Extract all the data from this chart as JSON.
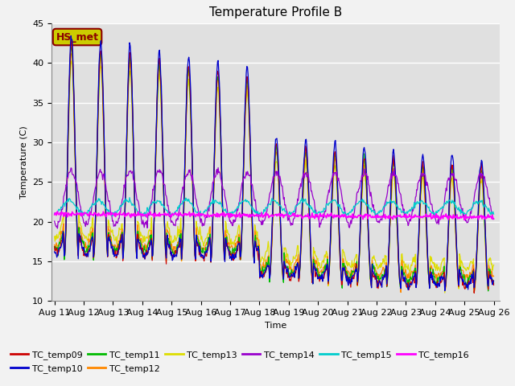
{
  "title": "Temperature Profile B",
  "xlabel": "Time",
  "ylabel": "Temperature (C)",
  "ylim": [
    10,
    45
  ],
  "series_colors": {
    "TC_temp09": "#cc0000",
    "TC_temp10": "#0000cc",
    "TC_temp11": "#00bb00",
    "TC_temp12": "#ff8800",
    "TC_temp13": "#dddd00",
    "TC_temp14": "#9900cc",
    "TC_temp15": "#00cccc",
    "TC_temp16": "#ff00ff"
  },
  "annotation_text": "HS_met",
  "annotation_color": "#8B0000",
  "annotation_bg": "#cccc00",
  "background_color": "#e0e0e0",
  "grid_color": "#ffffff",
  "title_fontsize": 11,
  "label_fontsize": 8,
  "tick_fontsize": 8
}
